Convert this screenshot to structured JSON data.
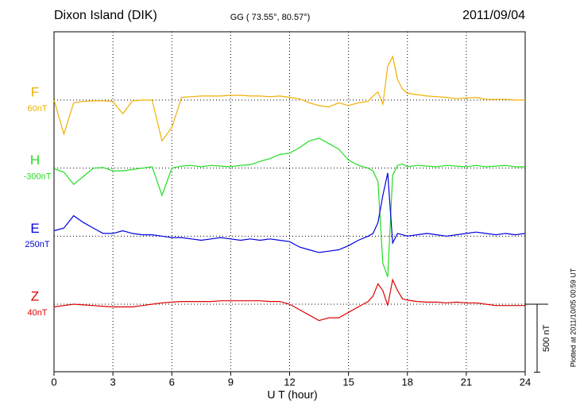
{
  "chart_data": {
    "type": "line",
    "title": "Dixon Island (DIK)",
    "subtitle": "GG ( 73.55°,  80.57°)",
    "date": "2011/09/04",
    "plotted_note": "Plotted at 2011/10/05 00:59 UT",
    "xlabel": "U T (hour)",
    "xlim": [
      0,
      24
    ],
    "xticks": [
      0,
      3,
      6,
      9,
      12,
      15,
      18,
      21,
      24
    ],
    "grid": true,
    "scale_bar": {
      "value": 500,
      "label": "500 nT"
    },
    "x": [
      0,
      0.5,
      1,
      1.5,
      2,
      2.5,
      3,
      3.5,
      4,
      4.5,
      5,
      5.5,
      6,
      6.5,
      7,
      7.5,
      8,
      8.5,
      9,
      9.5,
      10,
      10.5,
      11,
      11.5,
      12,
      12.5,
      13,
      13.5,
      14,
      14.5,
      15,
      15.5,
      16,
      16.25,
      16.5,
      16.75,
      17,
      17.25,
      17.5,
      17.75,
      18,
      18.5,
      19,
      19.5,
      20,
      20.5,
      21,
      21.5,
      22,
      22.5,
      23,
      23.5,
      24
    ],
    "series": [
      {
        "name": "F",
        "baseline_label": "60nT",
        "color": "#f0b000",
        "values": [
          0,
          -250,
          -20,
          -10,
          -5,
          -5,
          -10,
          -100,
          -5,
          0,
          0,
          -300,
          -200,
          20,
          25,
          30,
          30,
          30,
          35,
          35,
          30,
          30,
          25,
          30,
          20,
          10,
          -20,
          -40,
          -50,
          -20,
          -40,
          -20,
          -10,
          30,
          60,
          -30,
          250,
          320,
          150,
          80,
          50,
          40,
          30,
          25,
          20,
          10,
          15,
          20,
          5,
          5,
          5,
          0,
          0
        ]
      },
      {
        "name": "H",
        "baseline_label": "-300nT",
        "color": "#22dd22",
        "values": [
          -5,
          -30,
          -120,
          -60,
          0,
          5,
          -20,
          -20,
          -10,
          0,
          10,
          -200,
          0,
          15,
          20,
          10,
          20,
          15,
          10,
          20,
          25,
          50,
          70,
          100,
          110,
          150,
          200,
          220,
          180,
          140,
          60,
          20,
          0,
          -20,
          -100,
          -700,
          -800,
          -50,
          20,
          30,
          10,
          20,
          15,
          10,
          20,
          15,
          10,
          20,
          10,
          15,
          20,
          10,
          10
        ]
      },
      {
        "name": "E",
        "baseline_label": "250nT",
        "color": "#0000dd",
        "values": [
          40,
          60,
          150,
          100,
          60,
          20,
          20,
          40,
          20,
          10,
          10,
          0,
          -10,
          -10,
          -20,
          -30,
          -20,
          -10,
          -20,
          -30,
          -20,
          -30,
          -20,
          -30,
          -40,
          -80,
          -100,
          -120,
          -110,
          -100,
          -70,
          -30,
          0,
          20,
          100,
          300,
          465,
          -50,
          20,
          10,
          0,
          10,
          20,
          10,
          0,
          10,
          20,
          30,
          20,
          10,
          20,
          10,
          20
        ]
      },
      {
        "name": "Z",
        "baseline_label": "40nT",
        "color": "#dd0000",
        "values": [
          -20,
          -10,
          0,
          -5,
          -10,
          -15,
          -20,
          -20,
          -20,
          -10,
          0,
          10,
          15,
          20,
          20,
          20,
          20,
          25,
          25,
          25,
          25,
          25,
          20,
          20,
          0,
          -40,
          -80,
          -120,
          -100,
          -100,
          -60,
          -20,
          20,
          60,
          150,
          100,
          -10,
          180,
          100,
          40,
          30,
          20,
          15,
          15,
          10,
          15,
          10,
          10,
          0,
          -10,
          -10,
          -10,
          -10
        ]
      }
    ]
  }
}
